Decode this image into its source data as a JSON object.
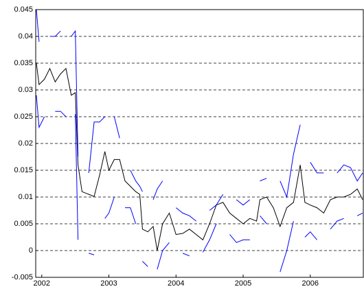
{
  "chart_data": {
    "type": "line",
    "x": [
      2001.92,
      2001.96,
      2002.04,
      2002.12,
      2002.2,
      2002.28,
      2002.36,
      2002.44,
      2002.5,
      2002.54,
      2002.6,
      2002.7,
      2002.78,
      2002.86,
      2002.94,
      2003.0,
      2003.08,
      2003.16,
      2003.24,
      2003.32,
      2003.4,
      2003.46,
      2003.5,
      2003.58,
      2003.66,
      2003.72,
      2003.8,
      2003.9,
      2004.0,
      2004.1,
      2004.2,
      2004.3,
      2004.4,
      2004.5,
      2004.6,
      2004.7,
      2004.8,
      2004.9,
      2005.0,
      2005.1,
      2005.2,
      2005.25,
      2005.35,
      2005.45,
      2005.55,
      2005.65,
      2005.75,
      2005.85,
      2005.92,
      2006.0,
      2006.1,
      2006.2,
      2006.3,
      2006.4,
      2006.5,
      2006.6,
      2006.7,
      2006.78
    ],
    "series": [
      {
        "color": "#000000",
        "values": [
          0.035,
          0.031,
          0.032,
          0.034,
          0.0315,
          0.033,
          0.034,
          0.029,
          0.0295,
          0.016,
          0.011,
          0.0105,
          0.0101,
          0.014,
          0.0185,
          0.015,
          0.017,
          0.017,
          0.013,
          0.012,
          0.011,
          0.0105,
          0.004,
          0.0035,
          0.0045,
          0.0,
          0.005,
          0.007,
          0.003,
          0.0032,
          0.004,
          0.003,
          0.002,
          0.005,
          0.0085,
          0.009,
          0.007,
          0.006,
          0.005,
          0.006,
          0.0055,
          0.0095,
          0.01,
          0.008,
          0.0045,
          0.008,
          0.009,
          0.016,
          0.009,
          0.0085,
          0.008,
          0.007,
          0.0095,
          0.01,
          0.01,
          0.0105,
          0.0115,
          0.0095
        ]
      },
      {
        "color": "#0000ff",
        "values": [
          0.045,
          0.039,
          null,
          0.04,
          0.04,
          0.041,
          null,
          0.04,
          0.041,
          0.0175,
          null,
          0.0145,
          0.024,
          0.024,
          0.025,
          null,
          0.025,
          0.021,
          null,
          0.015,
          0.013,
          0.012,
          0.011,
          null,
          0.0095,
          0.0115,
          0.013,
          null,
          0.008,
          0.007,
          0.0065,
          0.0055,
          null,
          0.0075,
          0.0085,
          0.0105,
          null,
          0.0095,
          0.0085,
          0.0095,
          null,
          0.013,
          0.0135,
          null,
          0.013,
          0.01,
          0.018,
          0.0235,
          null,
          0.0165,
          0.0145,
          0.0145,
          null,
          0.0145,
          0.016,
          0.0155,
          0.013,
          0.0145
        ]
      },
      {
        "color": "#0000ff",
        "values": [
          0.029,
          0.023,
          0.025,
          null,
          0.026,
          0.026,
          0.025,
          null,
          0.0255,
          0.002,
          null,
          -0.0005,
          -0.0008,
          null,
          0.006,
          0.007,
          0.01,
          null,
          0.008,
          0.008,
          0.005,
          null,
          -0.002,
          -0.003,
          null,
          -0.0035,
          0.0,
          0.0015,
          null,
          -0.0005,
          -0.001,
          null,
          -0.0003,
          0.002,
          0.005,
          null,
          0.003,
          0.0015,
          0.002,
          0.002,
          null,
          0.0065,
          0.005,
          null,
          -0.004,
          0.0,
          0.0055,
          null,
          0.0025,
          0.0035,
          0.002,
          null,
          0.004,
          0.0055,
          0.006,
          null,
          0.0065,
          0.007
        ]
      }
    ],
    "xlim": [
      2001.91,
      2006.79
    ],
    "xticks": [
      2002,
      2003,
      2004,
      2005,
      2006
    ],
    "ylim": [
      -0.005,
      0.045
    ],
    "yticks": [
      -0.005,
      0,
      0.005,
      0.01,
      0.015,
      0.02,
      0.025,
      0.03,
      0.035,
      0.04,
      0.045
    ],
    "grid": true
  }
}
